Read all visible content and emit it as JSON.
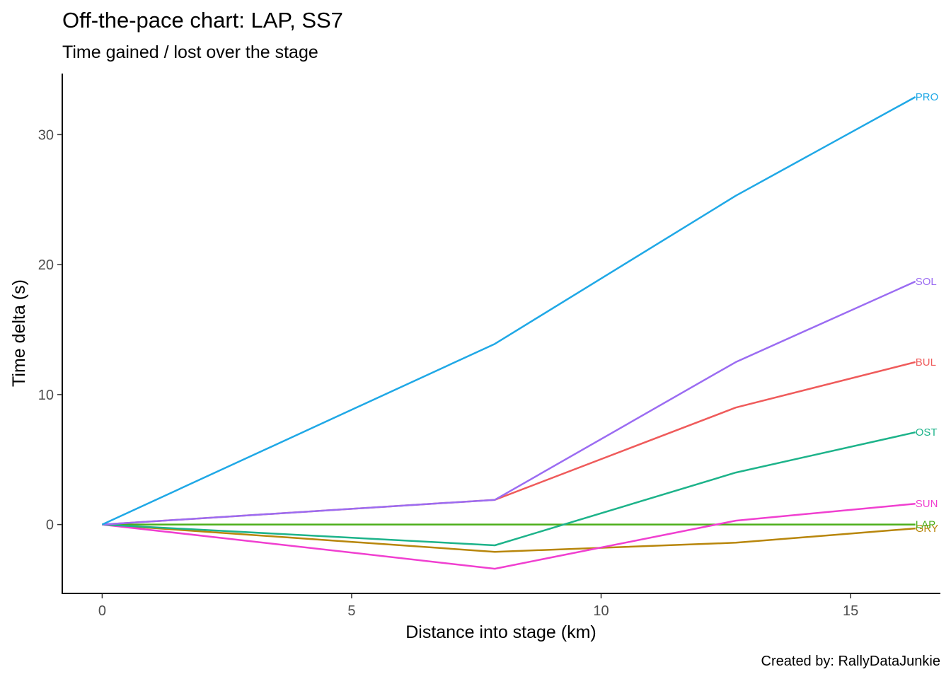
{
  "chart_data": {
    "type": "line",
    "title": "Off-the-pace chart: LAP, SS7",
    "subtitle": "Time gained / lost over the stage",
    "xlabel": "Distance into stage (km)",
    "ylabel": "Time delta (s)",
    "caption": "Created by: RallyDataJunkie",
    "x_ticks": [
      0,
      5,
      10,
      15
    ],
    "y_ticks": [
      0,
      10,
      20,
      30
    ],
    "xlim": [
      -0.8,
      16.8
    ],
    "ylim": [
      34.7,
      -5.3
    ],
    "y_reversed": true,
    "grid": false,
    "legend": "direct labels at line ends",
    "x": [
      0,
      7.87,
      12.7,
      16.3
    ],
    "series": [
      {
        "name": "GRY",
        "color": "#B8860B",
        "values": [
          0,
          -2.1,
          -1.4,
          -0.3
        ]
      },
      {
        "name": "LAP",
        "color": "#4CAF1A",
        "values": [
          0,
          0,
          0,
          0
        ]
      },
      {
        "name": "SUN",
        "color": "#F03FD0",
        "values": [
          0,
          -3.4,
          0.3,
          1.6
        ]
      },
      {
        "name": "OST",
        "color": "#1DB38A",
        "values": [
          0,
          -1.6,
          4.0,
          7.1
        ]
      },
      {
        "name": "BUL",
        "color": "#EF5B5B",
        "values": [
          0,
          1.9,
          9.0,
          12.5
        ]
      },
      {
        "name": "SOL",
        "color": "#9B6CF2",
        "values": [
          0,
          1.9,
          12.5,
          18.7
        ]
      },
      {
        "name": "PRO",
        "color": "#1FA8E6",
        "values": [
          0,
          13.9,
          25.3,
          32.9
        ]
      }
    ]
  }
}
